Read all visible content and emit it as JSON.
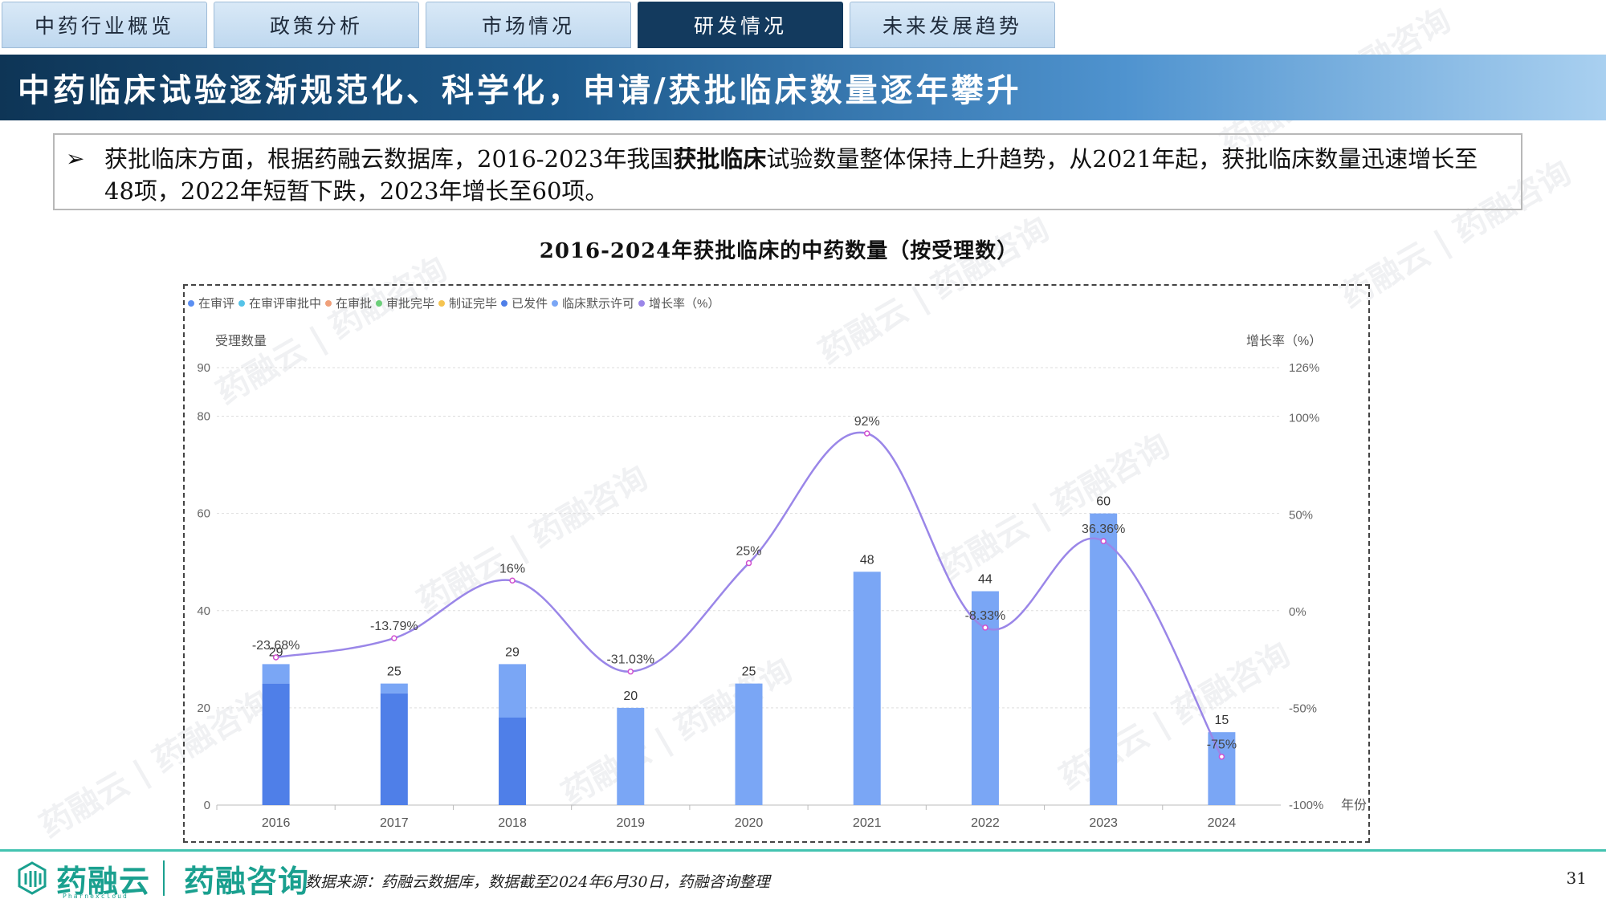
{
  "tabs": [
    {
      "label": "中药行业概览",
      "active": false
    },
    {
      "label": "政策分析",
      "active": false
    },
    {
      "label": "市场情况",
      "active": false
    },
    {
      "label": "研发情况",
      "active": true
    },
    {
      "label": "未来发展趋势",
      "active": false
    }
  ],
  "banner": {
    "title": "中药临床试验逐渐规范化、科学化，申请/获批临床数量逐年攀升"
  },
  "summary": {
    "bullet": "➢",
    "text_1": "获批临床方面，根据药融云数据库，2016-2023年我国",
    "text_bold": "获批临床",
    "text_2": "试验数量整体保持上升趋势，从2021年起，获批临床数量迅速增长至48项，2022年短暂下跌，2023年增长至60项。"
  },
  "watermark": {
    "text": "药融云 | 药融咨询"
  },
  "chart_data": {
    "type": "bar",
    "title": "2016-2024年获批临床的中药数量（按受理数）",
    "legend": [
      "在审评",
      "在审评审批中",
      "在审批",
      "审批完毕",
      "制证完毕",
      "已发件",
      "临床默示许可",
      "增长率（%）"
    ],
    "legend_colors": [
      "#5b8ff2",
      "#55c3e8",
      "#f0a07a",
      "#6ccf7a",
      "#f5c451",
      "#4f7fe8",
      "#7aa6f5",
      "#9a86e8"
    ],
    "legend_position": "top-left",
    "ylabel": "受理数量",
    "y2label": "增长率（%）",
    "xlabel": "年份",
    "categories": [
      "2016",
      "2017",
      "2018",
      "2019",
      "2020",
      "2021",
      "2022",
      "2023",
      "2024"
    ],
    "totals": [
      29,
      25,
      29,
      20,
      25,
      48,
      44,
      60,
      15
    ],
    "series": [
      {
        "name": "已发件",
        "values": [
          25,
          23,
          18,
          0,
          0,
          0,
          0,
          0,
          0
        ],
        "color": "#4f7fe8"
      },
      {
        "name": "临床默示许可",
        "values": [
          4,
          2,
          11,
          20,
          25,
          48,
          44,
          60,
          15
        ],
        "color": "#7aa6f5"
      }
    ],
    "growth": {
      "name": "增长率（%）",
      "values": [
        -23.68,
        -13.79,
        16,
        -31.03,
        25,
        92,
        -8.33,
        36.36,
        -75
      ],
      "labels": [
        "-23.68%",
        "-13.79%",
        "16%",
        "-31.03%",
        "25%",
        "92%",
        "-8.33%",
        "36.36%",
        "-75%"
      ],
      "color": "#9a86e8"
    },
    "y_ticks": [
      0,
      20,
      40,
      60,
      80,
      90
    ],
    "ylim": [
      0,
      90
    ],
    "y2_ticks": [
      "-100%",
      "-50%",
      "0%",
      "50%",
      "100%",
      "126%"
    ],
    "y2_values": [
      -100,
      -50,
      0,
      50,
      100,
      126
    ],
    "y2lim": [
      -100,
      126
    ],
    "grid": true
  },
  "footer": {
    "brand": "药融云",
    "brand_sub": "Pharnexcloud",
    "brand2": "药融咨询",
    "source": "数据来源：药融云数据库，数据截至2024年6月30日，药融咨询整理",
    "page": "31"
  }
}
